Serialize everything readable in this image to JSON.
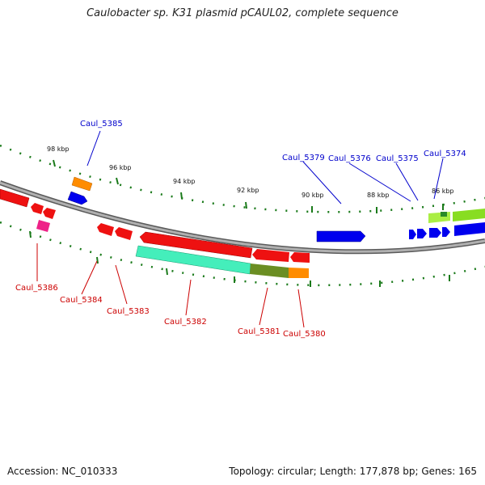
{
  "title": "Caulobacter sp. K31 plasmid pCAUL02, complete sequence",
  "footer": {
    "accession": "Accession: NC_010333",
    "summary": "Topology: circular; Length: 177,878 bp; Genes: 165"
  },
  "colors": {
    "backbone": "#8a8a8a",
    "tick": "#1a7a1a",
    "forward_label": "#0000cc",
    "reverse_label": "#cc0000"
  },
  "scale": {
    "labels": [
      "98 kbp",
      "96 kbp",
      "94 kbp",
      "92 kbp",
      "90 kbp",
      "88 kbp",
      "86 kbp"
    ]
  },
  "genes": {
    "forward": [
      "Caul_5385",
      "Caul_5379",
      "Caul_5376",
      "Caul_5375",
      "Caul_5374"
    ],
    "reverse": [
      "Caul_5386",
      "Caul_5384",
      "Caul_5383",
      "Caul_5382",
      "Caul_5381",
      "Caul_5380"
    ]
  }
}
